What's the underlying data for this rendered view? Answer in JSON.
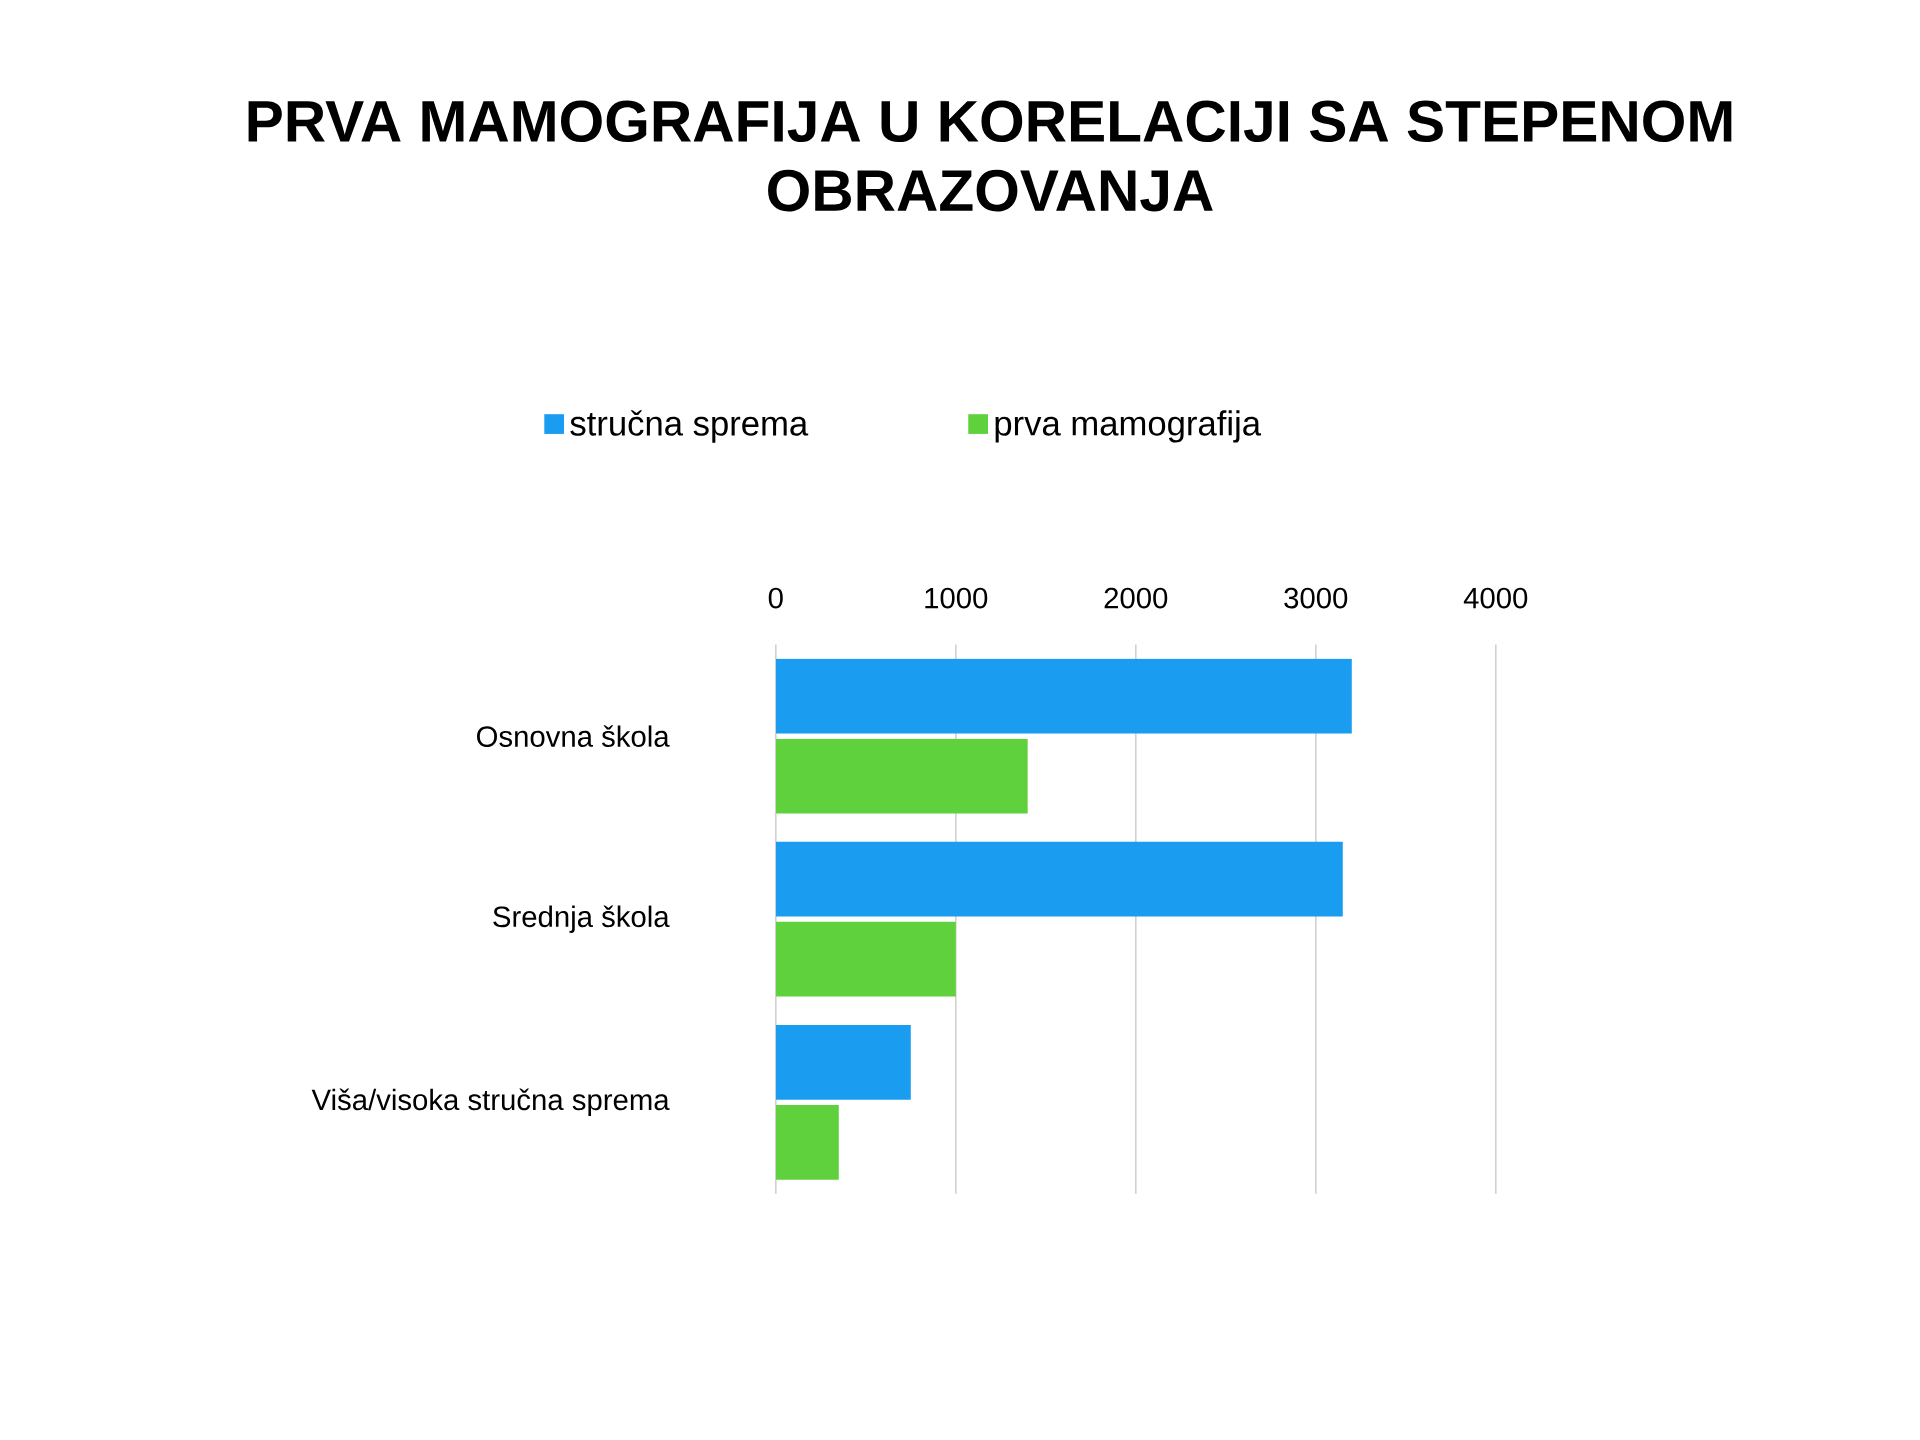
{
  "chart_data": {
    "type": "bar",
    "orientation": "horizontal",
    "title": "PRVA MAMOGRAFIJA U KORELACIJI SA STEPENOM OBRAZOVANJA",
    "categories": [
      "Osnovna škola",
      "Srednja škola",
      "Viša/visoka stručna sprema"
    ],
    "series": [
      {
        "name": "stručna sprema",
        "color": "#1a9cf0",
        "values": [
          3200,
          3150,
          750
        ]
      },
      {
        "name": "prva mamografija",
        "color": "#5fd13c",
        "values": [
          1400,
          1000,
          350
        ]
      }
    ],
    "xlim": [
      0,
      4000
    ],
    "xticks": [
      0,
      1000,
      2000,
      3000,
      4000
    ],
    "grid": "x",
    "legend": "top"
  }
}
